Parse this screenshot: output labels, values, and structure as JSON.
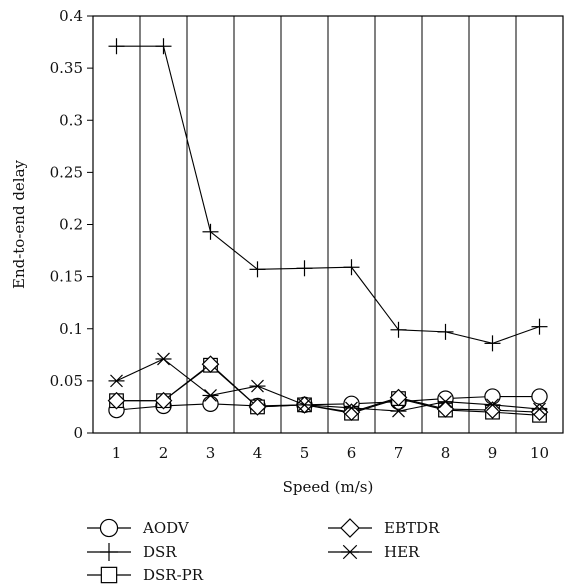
{
  "chart_data": {
    "type": "line",
    "xlabel": "Speed (m/s)",
    "ylabel": "End-to-end delay",
    "x": [
      1,
      2,
      3,
      4,
      5,
      6,
      7,
      8,
      9,
      10
    ],
    "xlim": [
      0.5,
      10.5
    ],
    "ylim": [
      0,
      0.4
    ],
    "yticks": [
      "0",
      "0.05",
      "0.1",
      "0.15",
      "0.2",
      "0.25",
      "0.3",
      "0.35",
      "0.4"
    ],
    "xticks": [
      "1",
      "2",
      "3",
      "4",
      "5",
      "6",
      "7",
      "8",
      "9",
      "10"
    ],
    "grid": "vertical",
    "legend_position": "bottom",
    "series": [
      {
        "name": "AODV",
        "marker": "circle",
        "values": [
          0.022,
          0.026,
          0.028,
          0.026,
          0.027,
          0.028,
          0.03,
          0.033,
          0.035,
          0.035
        ]
      },
      {
        "name": "DSR",
        "marker": "plus",
        "values": [
          0.371,
          0.371,
          0.193,
          0.157,
          0.158,
          0.159,
          0.099,
          0.097,
          0.086,
          0.102
        ]
      },
      {
        "name": "DSR-PR",
        "marker": "square",
        "values": [
          0.031,
          0.031,
          0.065,
          0.025,
          0.027,
          0.019,
          0.033,
          0.022,
          0.02,
          0.017
        ]
      },
      {
        "name": "EBTDR",
        "marker": "diamond",
        "values": [
          0.031,
          0.031,
          0.066,
          0.025,
          0.027,
          0.02,
          0.034,
          0.023,
          0.022,
          0.02
        ]
      },
      {
        "name": "HER",
        "marker": "asterisk",
        "values": [
          0.05,
          0.071,
          0.036,
          0.045,
          0.027,
          0.024,
          0.021,
          0.03,
          0.027,
          0.023
        ]
      }
    ]
  }
}
